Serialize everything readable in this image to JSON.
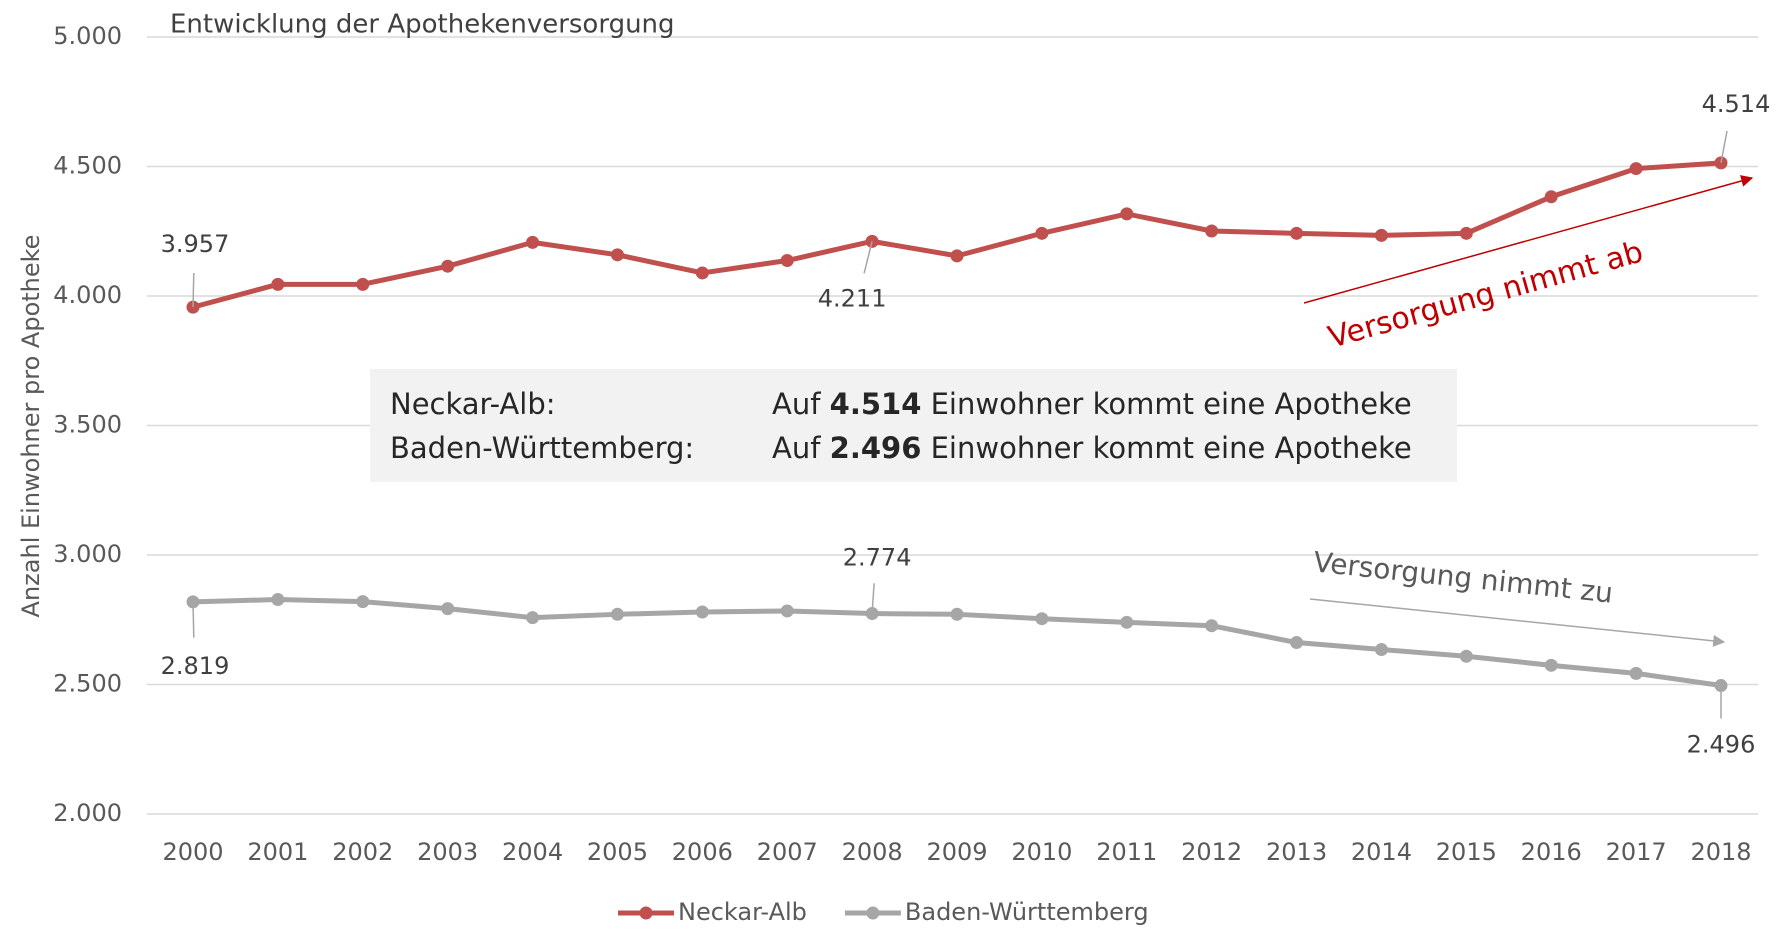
{
  "chart_data": {
    "type": "line",
    "title": "Entwicklung der Apothekenversorgung",
    "y_label": "Anzahl Einwohner pro Apotheke",
    "categories": [
      "2000",
      "2001",
      "2002",
      "2003",
      "2004",
      "2005",
      "2006",
      "2007",
      "2008",
      "2009",
      "2010",
      "2011",
      "2012",
      "2013",
      "2014",
      "2015",
      "2016",
      "2017",
      "2018"
    ],
    "series": [
      {
        "name": "Neckar-Alb",
        "color": "#c0504d",
        "values": [
          3957,
          4045,
          4045,
          4115,
          4207,
          4159,
          4089,
          4137,
          4211,
          4155,
          4242,
          4317,
          4251,
          4242,
          4234,
          4242,
          4383,
          4492,
          4514
        ],
        "value_labels": [
          "3.957",
          null,
          null,
          null,
          null,
          null,
          null,
          null,
          "4.211",
          null,
          null,
          null,
          null,
          null,
          null,
          null,
          null,
          null,
          "4.514"
        ]
      },
      {
        "name": "Baden-Württemberg",
        "color": "#a6a6a6",
        "values": [
          2819,
          2828,
          2820,
          2793,
          2758,
          2771,
          2780,
          2784,
          2774,
          2771,
          2754,
          2740,
          2727,
          2662,
          2635,
          2609,
          2574,
          2543,
          2496
        ],
        "value_labels": [
          "2.819",
          null,
          null,
          null,
          null,
          null,
          null,
          null,
          "2.774",
          null,
          null,
          null,
          null,
          null,
          null,
          null,
          null,
          null,
          "2.496"
        ]
      }
    ],
    "ylim": [
      2000,
      5000
    ],
    "yticks": [
      {
        "value": 2000,
        "label": "2.000"
      },
      {
        "value": 2500,
        "label": "2.500"
      },
      {
        "value": 3000,
        "label": "3.000"
      },
      {
        "value": 3500,
        "label": "3.500"
      },
      {
        "value": 4000,
        "label": "4.000"
      },
      {
        "value": 4500,
        "label": "4.500"
      },
      {
        "value": 5000,
        "label": "5.000"
      }
    ],
    "grid": true,
    "legend": "bottom",
    "annotations": [
      "Versorgung nimmt ab",
      "Versorgung nimmt zu"
    ],
    "info_box": [
      {
        "label": "Neckar-Alb:",
        "prefix": "Auf",
        "value": "4.514",
        "suffix": "Einwohner kommt eine Apotheke"
      },
      {
        "label": "Baden-Württemberg:",
        "prefix": "Auf",
        "value": "2.496",
        "suffix": "Einwohner kommt eine Apotheke"
      }
    ]
  }
}
